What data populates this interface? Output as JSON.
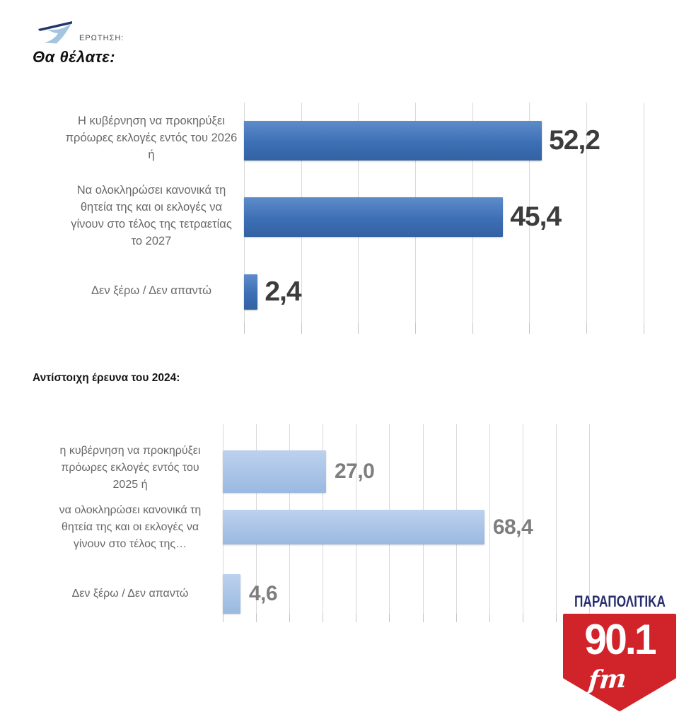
{
  "header": {
    "question_label": "ΕΡΩΤΗΣΗ:",
    "title": "Θα θέλατε:"
  },
  "section_2024_label": "Αντίστοιχη έρευνα του 2024:",
  "chart_data": [
    {
      "type": "bar",
      "orientation": "horizontal",
      "title": "Θα θέλατε:",
      "categories": [
        "Η κυβέρνηση να προκηρύξει πρόωρες εκλογές εντός του 2026 ή",
        "Να ολοκληρώσει κανονικά τη θητεία της και οι εκλογές να γίνουν στο τέλος της τετραετίας το 2027",
        "Δεν ξέρω / Δεν απαντώ"
      ],
      "category_lines": [
        [
          "Η κυβέρνηση να προκηρύξει",
          "πρόωρες εκλογές εντός του 2026",
          "ή"
        ],
        [
          "Να ολοκληρώσει κανονικά τη",
          "θητεία της και οι εκλογές να",
          "γίνουν στο τέλος της τετραετίας",
          "το 2027"
        ],
        [
          "Δεν ξέρω / Δεν απαντώ"
        ]
      ],
      "values": [
        52.2,
        45.4,
        2.4
      ],
      "value_labels": [
        "52,2",
        "45,4",
        "2,4"
      ],
      "xlim": [
        0,
        75
      ],
      "grid_step": 10,
      "grid": true,
      "legend": false
    },
    {
      "type": "bar",
      "orientation": "horizontal",
      "title": "Αντίστοιχη έρευνα του 2024:",
      "categories": [
        "η κυβέρνηση να προκηρύξει πρόωρες εκλογές εντός του 2025 ή",
        "να ολοκληρώσει κανονικά τη θητεία της και οι εκλογές να γίνουν στο τέλος της…",
        "Δεν ξέρω / Δεν απαντώ"
      ],
      "category_lines": [
        [
          "η κυβέρνηση να προκηρύξει",
          "πρόωρες εκλογές εντός του",
          "2025 ή"
        ],
        [
          "να ολοκληρώσει κανονικά τη",
          "θητεία της και οι εκλογές να",
          "γίνουν στο τέλος της…"
        ],
        [
          "Δεν ξέρω / Δεν απαντώ"
        ]
      ],
      "values": [
        27.0,
        68.4,
        4.6
      ],
      "value_labels": [
        "27,0",
        "68,4",
        "4,6"
      ],
      "xlim": [
        0,
        104.5
      ],
      "grid_step": 8.71,
      "grid": true,
      "legend": false
    }
  ],
  "logo": {
    "brand": "ΠΑΡΑΠΟΛΙΤΙΚΑ",
    "frequency": "90.1",
    "band": "fm"
  },
  "colors": {
    "bar_dark": "#3d6fb5",
    "bar_dark_light": "#5e8cca",
    "bar_dark_deep": "#3362a2",
    "bar_light": "#a9c4e7",
    "bar_light_top": "#bdd1ee",
    "bar_light_deep": "#9ab9e0",
    "grid": "#d9d9d9",
    "tick": "#c4c4c4",
    "label_gray": "#686868",
    "value_dark": "#3c3c3c",
    "value_gray": "#7e7e7e",
    "logo_red": "#d1232a",
    "logo_navy": "#272e6d",
    "icon_blue": "#a3c6de",
    "icon_navy": "#22356b"
  }
}
